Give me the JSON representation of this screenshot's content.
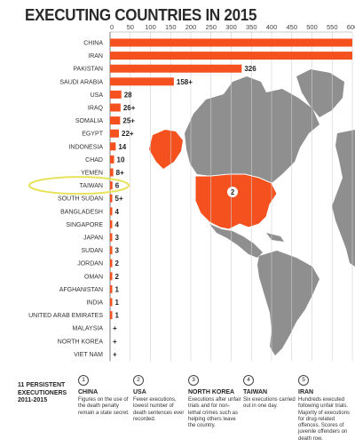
{
  "title": "EXECUTING COUNTRIES IN 2015",
  "chart_data": {
    "type": "bar",
    "orientation": "horizontal",
    "title": "EXECUTING COUNTRIES IN 2015",
    "xlim": [
      0,
      600
    ],
    "ticks": [
      0,
      50,
      100,
      150,
      200,
      250,
      300,
      350,
      400,
      450,
      500,
      550,
      600
    ],
    "grid": true,
    "bar_color": "#f4511e",
    "categories": [
      "CHINA",
      "IRAN",
      "PAKISTAN",
      "SAUDI ARABIA",
      "USA",
      "IRAQ",
      "SOMALIA",
      "EGYPT",
      "INDONESIA",
      "CHAD",
      "YEMEN",
      "TAIWAN",
      "SOUTH SUDAN",
      "BANGLADESH",
      "SINGAPORE",
      "JAPAN",
      "SUDAN",
      "JORDAN",
      "OMAN",
      "AFGHANISTAN",
      "INDIA",
      "UNITED ARAB EMIRATES",
      "MALAYSIA",
      "NORTH KOREA",
      "VIET NAM"
    ],
    "values": [
      600,
      600,
      326,
      158,
      28,
      26,
      25,
      22,
      14,
      10,
      8,
      6,
      5,
      4,
      4,
      3,
      3,
      2,
      2,
      1,
      1,
      1,
      0,
      0,
      0
    ],
    "value_labels": [
      "",
      "",
      "326",
      "158+",
      "28",
      "26+",
      "25+",
      "22+",
      "14",
      "10",
      "8+",
      "6",
      "5+",
      "4",
      "4",
      "3",
      "3",
      "2",
      "2",
      "1",
      "1",
      "1",
      "+",
      "+",
      "+"
    ],
    "highlight": "TAIWAN"
  },
  "colors": {
    "bar": "#f4511e",
    "map_land": "#8f8f8f",
    "map_highlight": "#f4511e",
    "highlight_ring": "#e8e25a",
    "grid": "#d0d0d0"
  },
  "map": {
    "usa_marker": "2"
  },
  "footer": {
    "title_line1": "11 PERSISTENT",
    "title_line2": "EXECUTIONERS",
    "title_line3": "2011-2015",
    "items": [
      {
        "num": "1",
        "country": "CHINA",
        "desc": "Figures on the use of the death penalty remain a state secret."
      },
      {
        "num": "2",
        "country": "USA",
        "desc": "Fewer executions, lowest number of death sentences ever recorded."
      },
      {
        "num": "3",
        "country": "NORTH KOREA",
        "desc": "Executions after unfair trials and for non-lethal crimes such as helping others leave the country."
      },
      {
        "num": "4",
        "country": "TAIWAN",
        "desc": "Six executions carried out in one day."
      },
      {
        "num": "5",
        "country": "IRAN",
        "desc": "Hundreds executed following unfair trials. Majority of executions for drug-related offences. Scores of juvenile offenders on death row."
      }
    ]
  }
}
